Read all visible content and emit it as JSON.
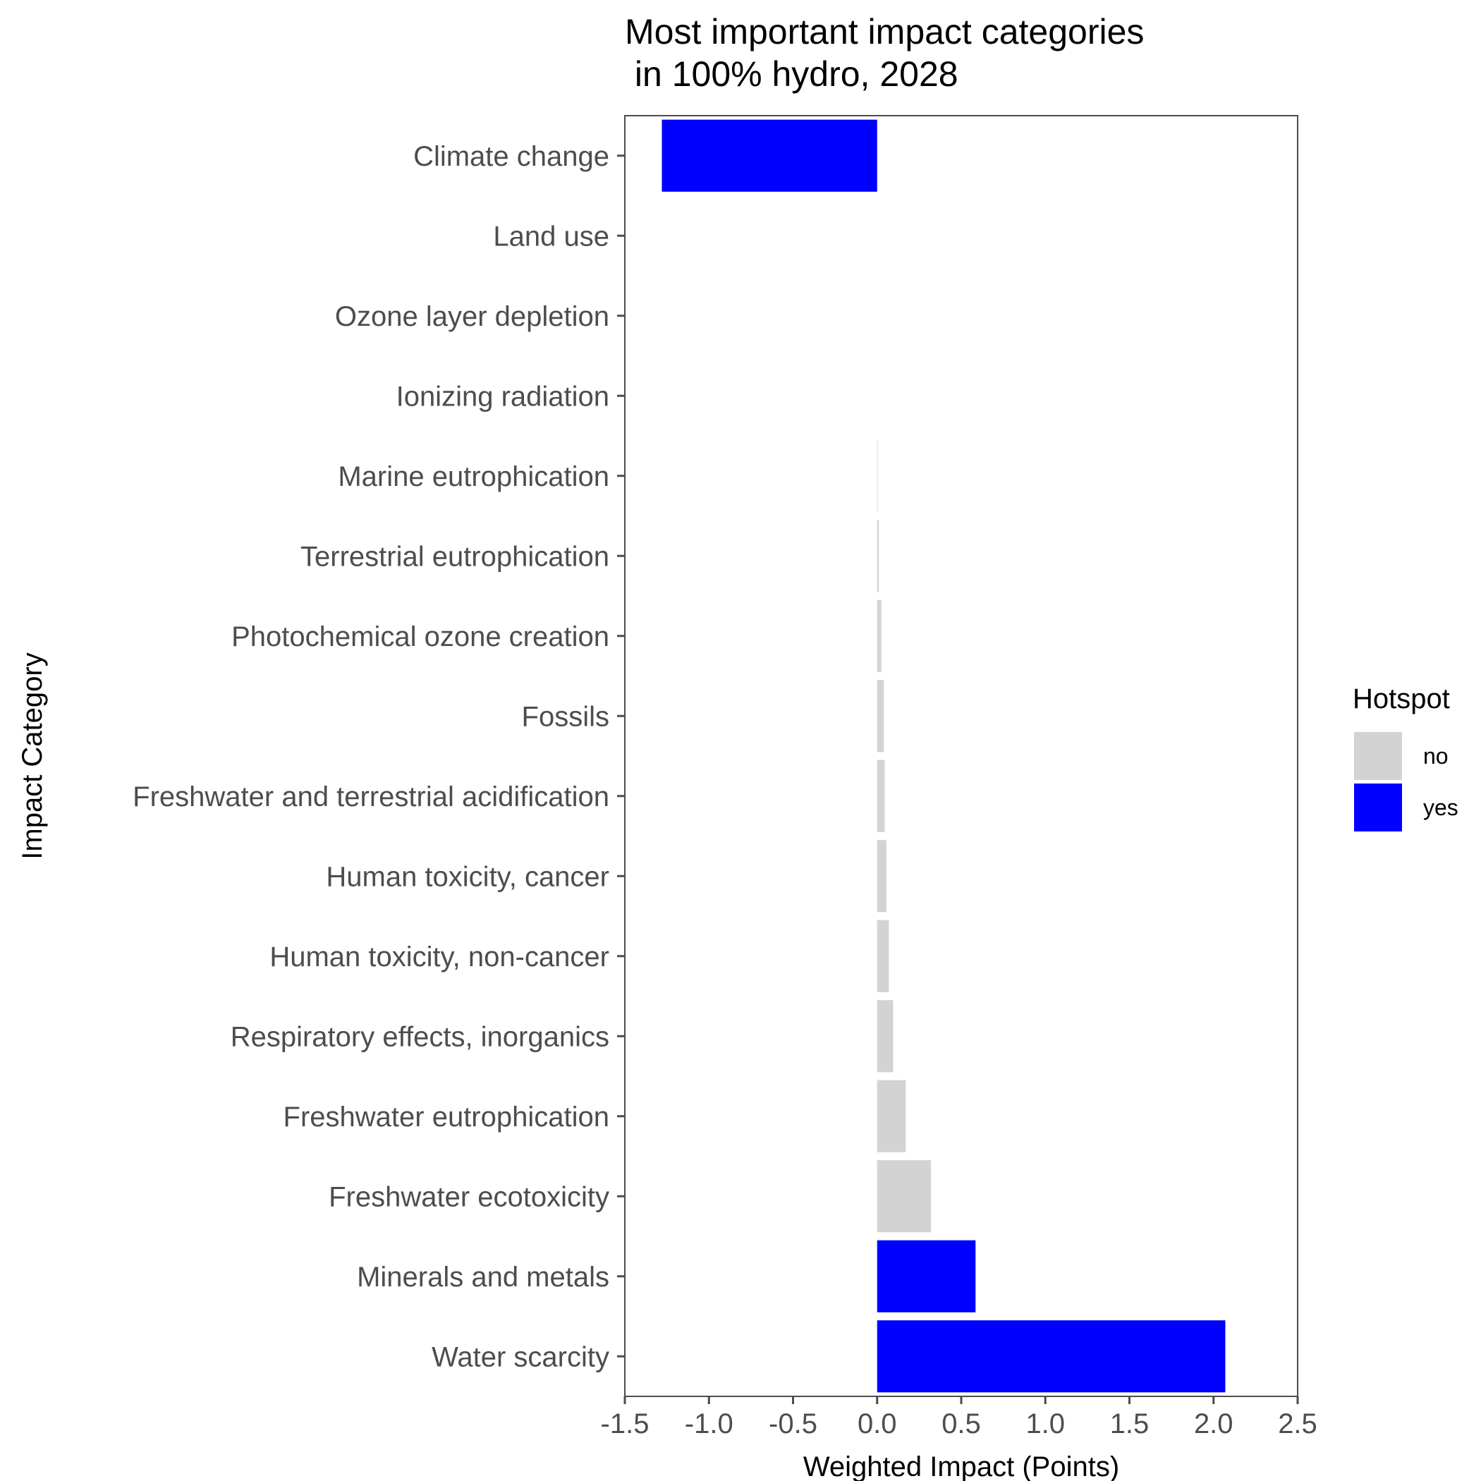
{
  "chart_data": {
    "type": "bar",
    "orientation": "horizontal",
    "title_lines": [
      "Most important impact categories",
      " in 100% hydro, 2028"
    ],
    "xlabel": "Weighted Impact (Points)",
    "ylabel": "Impact Category",
    "xlim": [
      -1.5,
      2.5
    ],
    "xticks": [
      -1.5,
      -1.0,
      -0.5,
      0.0,
      0.5,
      1.0,
      1.5,
      2.0,
      2.5
    ],
    "xtick_labels": [
      "-1.5",
      "-1.0",
      "-0.5",
      "0.0",
      "0.5",
      "1.0",
      "1.5",
      "2.0",
      "2.5"
    ],
    "grid": false,
    "legend": {
      "title": "Hotspot",
      "position": "right",
      "items": [
        {
          "label": "no",
          "color": "#d3d3d3"
        },
        {
          "label": "yes",
          "color": "#0000ff"
        }
      ]
    },
    "categories": [
      "Climate change",
      "Land use",
      "Ozone layer depletion",
      "Ionizing radiation",
      "Marine eutrophication",
      "Terrestrial eutrophication",
      "Photochemical ozone creation",
      "Fossils",
      "Freshwater and terrestrial acidification",
      "Human toxicity, cancer",
      "Human toxicity, non-cancer",
      "Respiratory effects, inorganics",
      "Freshwater eutrophication",
      "Freshwater ecotoxicity",
      "Minerals and metals",
      "Water scarcity"
    ],
    "values": [
      -1.28,
      0.0,
      0.0,
      0.0,
      0.003,
      0.01,
      0.025,
      0.04,
      0.045,
      0.055,
      0.07,
      0.095,
      0.17,
      0.32,
      0.585,
      2.07
    ],
    "hotspot": [
      "yes",
      "no",
      "no",
      "no",
      "no",
      "no",
      "no",
      "no",
      "no",
      "no",
      "no",
      "no",
      "no",
      "no",
      "yes",
      "yes"
    ]
  }
}
